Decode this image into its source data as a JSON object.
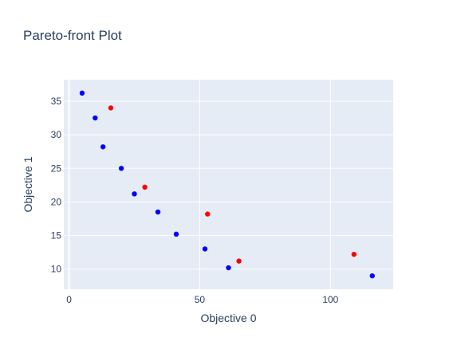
{
  "chart_data": {
    "type": "scatter",
    "title": "Pareto-front Plot",
    "xlabel": "Objective 0",
    "ylabel": "Objective 1",
    "xlim": [
      -2,
      124
    ],
    "ylim": [
      7,
      38.2
    ],
    "xticks": [
      0,
      50,
      100
    ],
    "yticks": [
      10,
      15,
      20,
      25,
      30,
      35
    ],
    "grid": true,
    "legend": "none",
    "colors": {
      "plot_bg": "#e5ecf6",
      "grid": "#ffffff",
      "text": "#2a3f5f",
      "front": "#0000ff",
      "dominated": "#ff0000"
    },
    "series": [
      {
        "color": "#0000ff",
        "points": [
          {
            "x": 5,
            "y": 36.2
          },
          {
            "x": 10,
            "y": 32.5
          },
          {
            "x": 13,
            "y": 28.2
          },
          {
            "x": 20,
            "y": 25.0
          },
          {
            "x": 25,
            "y": 21.2
          },
          {
            "x": 34,
            "y": 18.5
          },
          {
            "x": 41,
            "y": 15.2
          },
          {
            "x": 52,
            "y": 13.0
          },
          {
            "x": 61,
            "y": 10.2
          },
          {
            "x": 116,
            "y": 9.0
          }
        ]
      },
      {
        "color": "#ff0000",
        "points": [
          {
            "x": 16,
            "y": 34.0
          },
          {
            "x": 29,
            "y": 22.2
          },
          {
            "x": 53,
            "y": 18.2
          },
          {
            "x": 65,
            "y": 11.2
          },
          {
            "x": 109,
            "y": 12.2
          }
        ]
      }
    ]
  }
}
